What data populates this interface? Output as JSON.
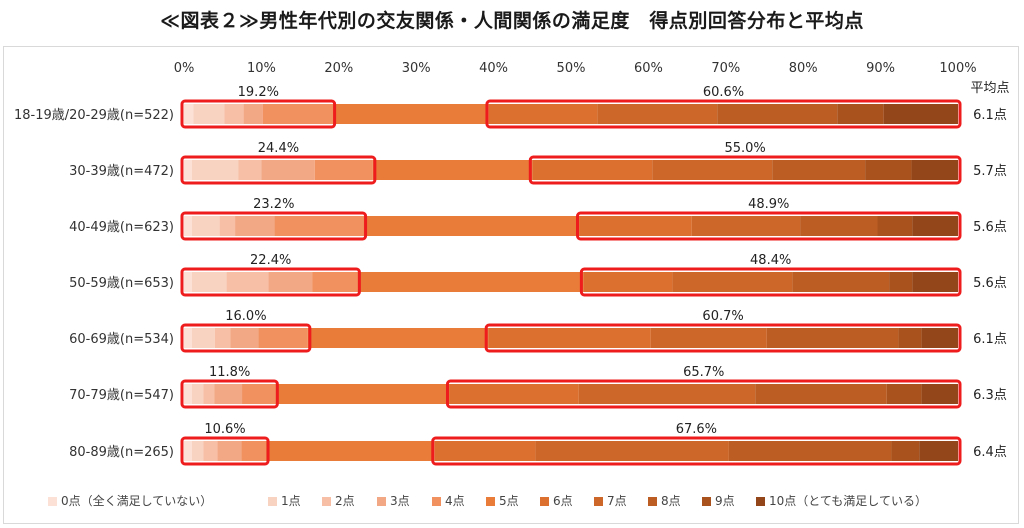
{
  "title": "≪図表２≫男性年代別の交友関係・人間関係の満足度　得点別回答分布と平均点",
  "chart_data": {
    "type": "bar",
    "orientation": "horizontal-stacked-100",
    "x_ticks": [
      "0%",
      "10%",
      "20%",
      "30%",
      "40%",
      "50%",
      "60%",
      "70%",
      "80%",
      "90%",
      "100%"
    ],
    "xlim": [
      0,
      100
    ],
    "avg_header": "平均点",
    "legend_position": "bottom",
    "legend": [
      "0点（全く満足していない）",
      "1点",
      "2点",
      "3点",
      "4点",
      "5点",
      "6点",
      "7点",
      "8点",
      "9点",
      "10点（とても満足している）"
    ],
    "colors": [
      "#fbe1d6",
      "#f9d3c2",
      "#f6bfa6",
      "#f3a885",
      "#f0915f",
      "#ea7c3a",
      "#dc702f",
      "#cd6729",
      "#bc5e24",
      "#a9521d",
      "#924619"
    ],
    "highlight_color": "#ee1c1c",
    "categories": [
      {
        "label": "18-19歳/20-29歳(n=522)",
        "segments": [
          1.2,
          4.0,
          2.5,
          2.5,
          9.0,
          20.2,
          14.0,
          15.5,
          15.5,
          6.0,
          9.6
        ],
        "low_label": "19.2%",
        "high_label": "60.6%",
        "avg": "6.1点"
      },
      {
        "label": "30-39歳(n=472)",
        "segments": [
          1.0,
          6.0,
          3.0,
          6.9,
          7.5,
          20.6,
          15.5,
          15.5,
          12.0,
          6.0,
          6.0
        ],
        "low_label": "24.4%",
        "high_label": "55.0%",
        "avg": "5.7点"
      },
      {
        "label": "40-49歳(n=623)",
        "segments": [
          1.0,
          3.6,
          2.0,
          5.1,
          11.5,
          27.9,
          14.5,
          14.0,
          10.0,
          4.5,
          5.9
        ],
        "low_label": "23.2%",
        "high_label": "48.9%",
        "avg": "5.6点"
      },
      {
        "label": "50-59歳(n=653)",
        "segments": [
          1.0,
          4.5,
          5.4,
          5.7,
          5.8,
          29.2,
          11.5,
          15.5,
          12.5,
          3.0,
          5.9
        ],
        "low_label": "22.4%",
        "high_label": "48.4%",
        "avg": "5.6点"
      },
      {
        "label": "60-69歳(n=534)",
        "segments": [
          1.0,
          3.0,
          2.0,
          3.6,
          6.4,
          23.3,
          21.0,
          15.0,
          17.0,
          3.0,
          4.7
        ],
        "low_label": "16.0%",
        "high_label": "60.7%",
        "avg": "6.1点"
      },
      {
        "label": "70-79歳(n=547)",
        "segments": [
          1.0,
          1.5,
          1.4,
          3.6,
          4.3,
          22.5,
          16.7,
          22.8,
          17.0,
          4.5,
          4.7
        ],
        "low_label": "11.8%",
        "high_label": "65.7%",
        "avg": "6.3点"
      },
      {
        "label": "80-89歳(n=265)",
        "segments": [
          1.0,
          1.5,
          1.8,
          3.1,
          3.2,
          21.8,
          13.0,
          25.0,
          21.0,
          3.6,
          5.0
        ],
        "low_label": "10.6%",
        "high_label": "67.6%",
        "avg": "6.4点"
      }
    ]
  }
}
